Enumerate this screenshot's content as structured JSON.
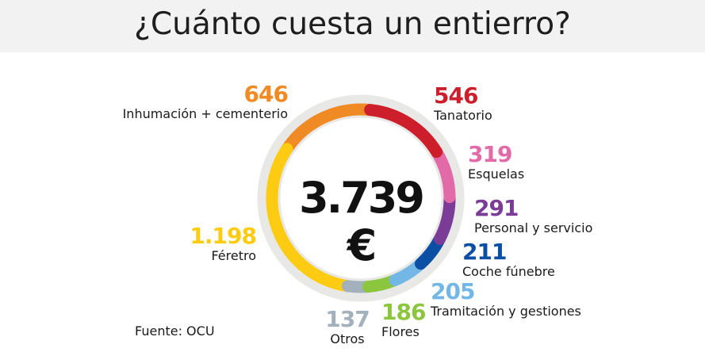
{
  "title": "¿Cuánto cuesta un entierro?",
  "source": "Fuente: OCU",
  "chart_data": {
    "type": "pie",
    "variant": "donut",
    "total_label": "3.739 €",
    "total": 3739,
    "categories": [
      "Tanatorio",
      "Esquelas",
      "Personal y servicio",
      "Coche fúnebre",
      "Tramitación y gestiones",
      "Flores",
      "Otros",
      "Féretro",
      "Inhumación + cementerio"
    ],
    "values": [
      546,
      319,
      291,
      211,
      205,
      186,
      137,
      1198,
      646
    ],
    "value_labels": [
      "546",
      "319",
      "291",
      "211",
      "205",
      "186",
      "137",
      "1.198",
      "646"
    ],
    "colors": [
      "#cc1f2b",
      "#e36aa8",
      "#7b3c98",
      "#0a4fa3",
      "#72b7e6",
      "#8cc63f",
      "#a3b1bd",
      "#fccb12",
      "#f08a24"
    ],
    "unit": "€",
    "order": "clockwise from top"
  }
}
